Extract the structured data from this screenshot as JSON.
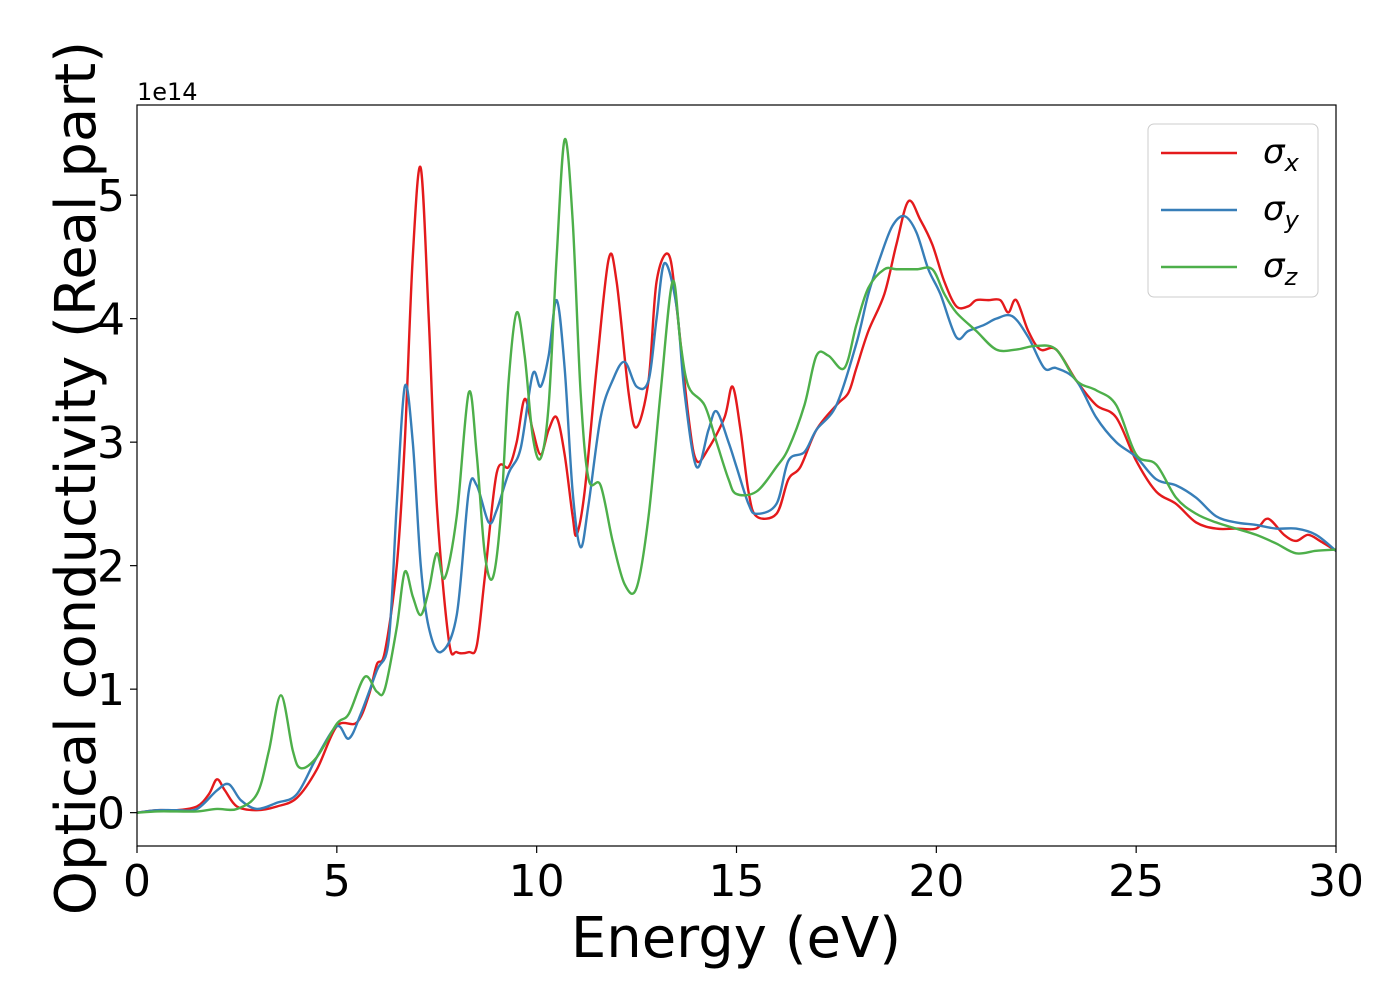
{
  "chart_data": {
    "type": "line",
    "title": "",
    "xlabel": "Energy (eV)",
    "ylabel": "Optical conductivity (Real part)",
    "y_offset_label": "1e14",
    "xlim": [
      0,
      30
    ],
    "ylim": [
      -0.27,
      5.73
    ],
    "y_scale": 100000000000000.0,
    "xticks": [
      0,
      5,
      10,
      15,
      20,
      25,
      30
    ],
    "xtick_labels": [
      "0",
      "5",
      "10",
      "15",
      "20",
      "25",
      "30"
    ],
    "yticks": [
      0,
      1,
      2,
      3,
      4,
      5
    ],
    "ytick_labels": [
      "0",
      "1",
      "2",
      "3",
      "4",
      "5"
    ],
    "grid": false,
    "legend_position": "top-right",
    "series": [
      {
        "name": "σx",
        "symbol": "σ",
        "subscript": "x",
        "color": "#e41a1c",
        "points": [
          [
            0,
            0
          ],
          [
            0.5,
            0.02
          ],
          [
            1.0,
            0.02
          ],
          [
            1.5,
            0.05
          ],
          [
            1.8,
            0.15
          ],
          [
            2.0,
            0.27
          ],
          [
            2.2,
            0.18
          ],
          [
            2.5,
            0.05
          ],
          [
            3.0,
            0.02
          ],
          [
            3.5,
            0.05
          ],
          [
            4.0,
            0.12
          ],
          [
            4.5,
            0.35
          ],
          [
            5.0,
            0.7
          ],
          [
            5.5,
            0.73
          ],
          [
            5.8,
            0.95
          ],
          [
            6.0,
            1.2
          ],
          [
            6.2,
            1.3
          ],
          [
            6.5,
            2.0
          ],
          [
            6.7,
            3.0
          ],
          [
            6.9,
            4.5
          ],
          [
            7.1,
            5.22
          ],
          [
            7.3,
            4.0
          ],
          [
            7.5,
            2.5
          ],
          [
            7.8,
            1.4
          ],
          [
            8.0,
            1.3
          ],
          [
            8.3,
            1.3
          ],
          [
            8.5,
            1.35
          ],
          [
            8.7,
            1.9
          ],
          [
            9.0,
            2.75
          ],
          [
            9.3,
            2.8
          ],
          [
            9.5,
            3.0
          ],
          [
            9.7,
            3.35
          ],
          [
            9.9,
            3.1
          ],
          [
            10.1,
            2.9
          ],
          [
            10.3,
            3.1
          ],
          [
            10.5,
            3.2
          ],
          [
            10.7,
            2.9
          ],
          [
            10.9,
            2.4
          ],
          [
            11.0,
            2.25
          ],
          [
            11.2,
            2.6
          ],
          [
            11.5,
            3.6
          ],
          [
            11.8,
            4.48
          ],
          [
            12.0,
            4.3
          ],
          [
            12.3,
            3.4
          ],
          [
            12.5,
            3.12
          ],
          [
            12.8,
            3.5
          ],
          [
            13.0,
            4.3
          ],
          [
            13.3,
            4.52
          ],
          [
            13.5,
            4.1
          ],
          [
            13.8,
            3.2
          ],
          [
            14.0,
            2.85
          ],
          [
            14.3,
            2.95
          ],
          [
            14.7,
            3.2
          ],
          [
            14.9,
            3.45
          ],
          [
            15.1,
            3.1
          ],
          [
            15.3,
            2.6
          ],
          [
            15.5,
            2.4
          ],
          [
            16.0,
            2.42
          ],
          [
            16.3,
            2.7
          ],
          [
            16.6,
            2.8
          ],
          [
            17.0,
            3.1
          ],
          [
            17.5,
            3.3
          ],
          [
            17.8,
            3.4
          ],
          [
            18.0,
            3.6
          ],
          [
            18.3,
            3.9
          ],
          [
            18.7,
            4.2
          ],
          [
            19.0,
            4.6
          ],
          [
            19.3,
            4.95
          ],
          [
            19.6,
            4.8
          ],
          [
            19.9,
            4.6
          ],
          [
            20.2,
            4.3
          ],
          [
            20.5,
            4.1
          ],
          [
            20.8,
            4.1
          ],
          [
            21.0,
            4.15
          ],
          [
            21.3,
            4.15
          ],
          [
            21.6,
            4.15
          ],
          [
            21.8,
            4.05
          ],
          [
            22.0,
            4.15
          ],
          [
            22.3,
            3.9
          ],
          [
            22.6,
            3.75
          ],
          [
            23.0,
            3.75
          ],
          [
            23.5,
            3.5
          ],
          [
            24.0,
            3.3
          ],
          [
            24.5,
            3.2
          ],
          [
            25.0,
            2.85
          ],
          [
            25.5,
            2.6
          ],
          [
            26.0,
            2.5
          ],
          [
            26.5,
            2.35
          ],
          [
            27.0,
            2.3
          ],
          [
            27.5,
            2.3
          ],
          [
            28.0,
            2.3
          ],
          [
            28.3,
            2.38
          ],
          [
            28.7,
            2.25
          ],
          [
            29.0,
            2.2
          ],
          [
            29.3,
            2.25
          ],
          [
            29.6,
            2.2
          ],
          [
            30.0,
            2.12
          ]
        ]
      },
      {
        "name": "σy",
        "symbol": "σ",
        "subscript": "y",
        "color": "#377eb8",
        "points": [
          [
            0,
            0
          ],
          [
            0.5,
            0.02
          ],
          [
            1.0,
            0.02
          ],
          [
            1.5,
            0.03
          ],
          [
            2.0,
            0.18
          ],
          [
            2.3,
            0.23
          ],
          [
            2.6,
            0.1
          ],
          [
            3.0,
            0.03
          ],
          [
            3.5,
            0.08
          ],
          [
            4.0,
            0.15
          ],
          [
            4.5,
            0.45
          ],
          [
            5.0,
            0.7
          ],
          [
            5.3,
            0.6
          ],
          [
            5.6,
            0.8
          ],
          [
            6.0,
            1.15
          ],
          [
            6.3,
            1.4
          ],
          [
            6.5,
            2.5
          ],
          [
            6.7,
            3.45
          ],
          [
            6.9,
            3.0
          ],
          [
            7.1,
            2.0
          ],
          [
            7.3,
            1.5
          ],
          [
            7.6,
            1.3
          ],
          [
            8.0,
            1.6
          ],
          [
            8.3,
            2.6
          ],
          [
            8.5,
            2.65
          ],
          [
            8.8,
            2.35
          ],
          [
            9.0,
            2.45
          ],
          [
            9.3,
            2.75
          ],
          [
            9.6,
            2.95
          ],
          [
            9.9,
            3.55
          ],
          [
            10.1,
            3.45
          ],
          [
            10.3,
            3.7
          ],
          [
            10.5,
            4.15
          ],
          [
            10.7,
            3.6
          ],
          [
            10.9,
            2.6
          ],
          [
            11.1,
            2.15
          ],
          [
            11.3,
            2.5
          ],
          [
            11.6,
            3.2
          ],
          [
            11.9,
            3.5
          ],
          [
            12.2,
            3.65
          ],
          [
            12.5,
            3.45
          ],
          [
            12.8,
            3.5
          ],
          [
            13.0,
            4.0
          ],
          [
            13.2,
            4.45
          ],
          [
            13.5,
            4.1
          ],
          [
            13.7,
            3.4
          ],
          [
            14.0,
            2.8
          ],
          [
            14.3,
            3.1
          ],
          [
            14.5,
            3.25
          ],
          [
            14.8,
            3.0
          ],
          [
            15.0,
            2.8
          ],
          [
            15.3,
            2.5
          ],
          [
            15.5,
            2.42
          ],
          [
            16.0,
            2.5
          ],
          [
            16.3,
            2.85
          ],
          [
            16.7,
            2.92
          ],
          [
            17.0,
            3.1
          ],
          [
            17.5,
            3.3
          ],
          [
            18.0,
            3.8
          ],
          [
            18.3,
            4.2
          ],
          [
            18.6,
            4.5
          ],
          [
            18.9,
            4.75
          ],
          [
            19.2,
            4.83
          ],
          [
            19.5,
            4.7
          ],
          [
            19.8,
            4.4
          ],
          [
            20.1,
            4.2
          ],
          [
            20.5,
            3.85
          ],
          [
            20.8,
            3.9
          ],
          [
            21.2,
            3.95
          ],
          [
            21.5,
            4.0
          ],
          [
            21.9,
            4.02
          ],
          [
            22.3,
            3.85
          ],
          [
            22.7,
            3.6
          ],
          [
            23.0,
            3.6
          ],
          [
            23.5,
            3.5
          ],
          [
            24.0,
            3.2
          ],
          [
            24.5,
            3.0
          ],
          [
            25.0,
            2.88
          ],
          [
            25.5,
            2.7
          ],
          [
            26.0,
            2.65
          ],
          [
            26.5,
            2.55
          ],
          [
            27.0,
            2.4
          ],
          [
            27.5,
            2.35
          ],
          [
            28.0,
            2.33
          ],
          [
            28.5,
            2.3
          ],
          [
            29.0,
            2.3
          ],
          [
            29.5,
            2.25
          ],
          [
            30.0,
            2.12
          ]
        ]
      },
      {
        "name": "σz",
        "symbol": "σ",
        "subscript": "z",
        "color": "#4daf4a",
        "points": [
          [
            0,
            0
          ],
          [
            0.5,
            0.01
          ],
          [
            1.0,
            0.01
          ],
          [
            1.5,
            0.01
          ],
          [
            2.0,
            0.03
          ],
          [
            2.5,
            0.03
          ],
          [
            3.0,
            0.15
          ],
          [
            3.3,
            0.5
          ],
          [
            3.6,
            0.95
          ],
          [
            3.9,
            0.5
          ],
          [
            4.1,
            0.36
          ],
          [
            4.5,
            0.45
          ],
          [
            5.0,
            0.72
          ],
          [
            5.3,
            0.8
          ],
          [
            5.7,
            1.1
          ],
          [
            6.0,
            0.98
          ],
          [
            6.2,
            1.0
          ],
          [
            6.5,
            1.5
          ],
          [
            6.7,
            1.95
          ],
          [
            6.9,
            1.75
          ],
          [
            7.1,
            1.6
          ],
          [
            7.3,
            1.8
          ],
          [
            7.5,
            2.1
          ],
          [
            7.7,
            1.9
          ],
          [
            8.0,
            2.4
          ],
          [
            8.3,
            3.4
          ],
          [
            8.5,
            2.9
          ],
          [
            8.7,
            2.1
          ],
          [
            8.9,
            1.9
          ],
          [
            9.1,
            2.4
          ],
          [
            9.3,
            3.5
          ],
          [
            9.5,
            4.05
          ],
          [
            9.7,
            3.7
          ],
          [
            9.9,
            3.05
          ],
          [
            10.1,
            2.87
          ],
          [
            10.3,
            3.3
          ],
          [
            10.5,
            4.5
          ],
          [
            10.7,
            5.45
          ],
          [
            10.9,
            4.8
          ],
          [
            11.1,
            3.4
          ],
          [
            11.3,
            2.7
          ],
          [
            11.6,
            2.65
          ],
          [
            11.9,
            2.2
          ],
          [
            12.2,
            1.85
          ],
          [
            12.5,
            1.82
          ],
          [
            12.8,
            2.4
          ],
          [
            13.1,
            3.4
          ],
          [
            13.4,
            4.3
          ],
          [
            13.6,
            3.8
          ],
          [
            13.8,
            3.45
          ],
          [
            14.2,
            3.3
          ],
          [
            14.5,
            3.0
          ],
          [
            14.8,
            2.7
          ],
          [
            15.0,
            2.58
          ],
          [
            15.5,
            2.6
          ],
          [
            16.0,
            2.8
          ],
          [
            16.3,
            2.95
          ],
          [
            16.7,
            3.3
          ],
          [
            17.0,
            3.7
          ],
          [
            17.3,
            3.7
          ],
          [
            17.7,
            3.6
          ],
          [
            18.0,
            3.95
          ],
          [
            18.3,
            4.25
          ],
          [
            18.7,
            4.4
          ],
          [
            19.0,
            4.4
          ],
          [
            19.5,
            4.4
          ],
          [
            19.9,
            4.4
          ],
          [
            20.2,
            4.2
          ],
          [
            20.5,
            4.05
          ],
          [
            21.0,
            3.9
          ],
          [
            21.5,
            3.75
          ],
          [
            22.0,
            3.75
          ],
          [
            22.5,
            3.78
          ],
          [
            23.0,
            3.75
          ],
          [
            23.5,
            3.5
          ],
          [
            24.0,
            3.42
          ],
          [
            24.5,
            3.3
          ],
          [
            25.0,
            2.9
          ],
          [
            25.5,
            2.82
          ],
          [
            26.0,
            2.55
          ],
          [
            26.5,
            2.42
          ],
          [
            27.0,
            2.35
          ],
          [
            27.5,
            2.3
          ],
          [
            28.0,
            2.25
          ],
          [
            28.5,
            2.18
          ],
          [
            29.0,
            2.1
          ],
          [
            29.5,
            2.12
          ],
          [
            30.0,
            2.13
          ]
        ]
      }
    ]
  }
}
